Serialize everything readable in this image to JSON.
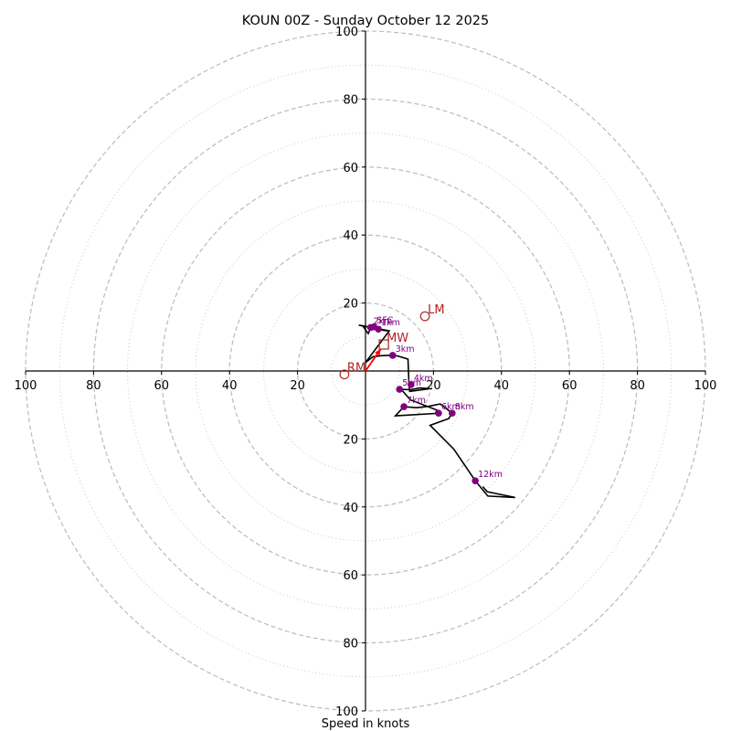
{
  "chart_data": {
    "type": "line",
    "subtype": "hodograph",
    "title": "KOUN 00Z - Sunday October 12 2025",
    "xlabel": "Speed in knots",
    "ylabel": "",
    "xlim": [
      -100,
      100
    ],
    "ylim": [
      -100,
      100
    ],
    "grid": true,
    "rings_dashed": [
      20,
      40,
      60,
      80,
      100
    ],
    "rings_dotted": [
      10,
      30,
      50,
      70,
      90
    ],
    "x_tick_labels": [
      {
        "value": -100,
        "label": "100"
      },
      {
        "value": -80,
        "label": "80"
      },
      {
        "value": -60,
        "label": "60"
      },
      {
        "value": -40,
        "label": "40"
      },
      {
        "value": -20,
        "label": "20"
      },
      {
        "value": 20,
        "label": "20"
      },
      {
        "value": 40,
        "label": "40"
      },
      {
        "value": 60,
        "label": "60"
      },
      {
        "value": 80,
        "label": "80"
      },
      {
        "value": 100,
        "label": "100"
      }
    ],
    "y_tick_labels": [
      {
        "value": 100,
        "label": "100"
      },
      {
        "value": 80,
        "label": "80"
      },
      {
        "value": 60,
        "label": "60"
      },
      {
        "value": 40,
        "label": "40"
      },
      {
        "value": 20,
        "label": "20"
      },
      {
        "value": -20,
        "label": "20"
      },
      {
        "value": -40,
        "label": "40"
      },
      {
        "value": -60,
        "label": "60"
      },
      {
        "value": -80,
        "label": "80"
      },
      {
        "value": -100,
        "label": "100"
      }
    ],
    "series": [
      {
        "name": "hodograph",
        "color": "#000000",
        "u": [
          -1,
          0.8,
          1.5,
          2.5,
          3.8,
          5,
          6.5,
          -2,
          7,
          0,
          2.2,
          4.5,
          6.5,
          8,
          9.5,
          12.5,
          12.8,
          13,
          19,
          16,
          13.2,
          10.5,
          13.2,
          21,
          20.5,
          8.8,
          11.3,
          15,
          18.5,
          22,
          25.5,
          24.5,
          19,
          26,
          32.3,
          36,
          44,
          35.8,
          34.5
        ],
        "v": [
          13.5,
          11,
          12.5,
          13,
          12.3,
          12,
          11.8,
          13.5,
          11.8,
          2.5,
          4.2,
          4.5,
          4.6,
          4.6,
          4.4,
          3.5,
          -4,
          -6,
          -5.2,
          -5,
          -5.5,
          -5.4,
          -8.5,
          -11.5,
          -12.5,
          -13.2,
          -10.5,
          -10.8,
          -10.4,
          -9.7,
          -12.4,
          -14,
          -16,
          -23,
          -32.3,
          -36.8,
          -37.2,
          -35.5,
          -34
        ]
      }
    ],
    "height_markers": [
      {
        "label": "SFC",
        "u": 2.5,
        "v": 13.0
      },
      {
        "label": "1km",
        "u": 3.8,
        "v": 12.3
      },
      {
        "label": "2km",
        "u": 1.5,
        "v": 12.8
      },
      {
        "label": "3km",
        "u": 8.0,
        "v": 4.6
      },
      {
        "label": "4km",
        "u": 13.4,
        "v": -4.0
      },
      {
        "label": "5km",
        "u": 10.0,
        "v": -5.4
      },
      {
        "label": "6km",
        "u": 21.5,
        "v": -12.4
      },
      {
        "label": "7km",
        "u": 11.3,
        "v": -10.5
      },
      {
        "label": "8km",
        "u": 25.5,
        "v": -12.4
      },
      {
        "label": "12km",
        "u": 32.3,
        "v": -32.3
      }
    ],
    "motion_markers": [
      {
        "label": "RM",
        "u": -6.2,
        "v": -1.0,
        "shape": "circle"
      },
      {
        "label": "LM",
        "u": 17.5,
        "v": 16.1,
        "shape": "circle"
      },
      {
        "label": "MW",
        "u": 5.4,
        "v": 7.8,
        "shape": "square"
      }
    ],
    "storm_motion_vector": {
      "from_u": 0,
      "from_v": 0,
      "to_u": 4.5,
      "to_v": 6.5,
      "color": "#ff0000"
    },
    "colors": {
      "hodograph": "#000000",
      "height_marker": "#800080",
      "motion_marker": "#b22222",
      "vector": "#ff0000",
      "grid": "#bbbbbb"
    }
  }
}
